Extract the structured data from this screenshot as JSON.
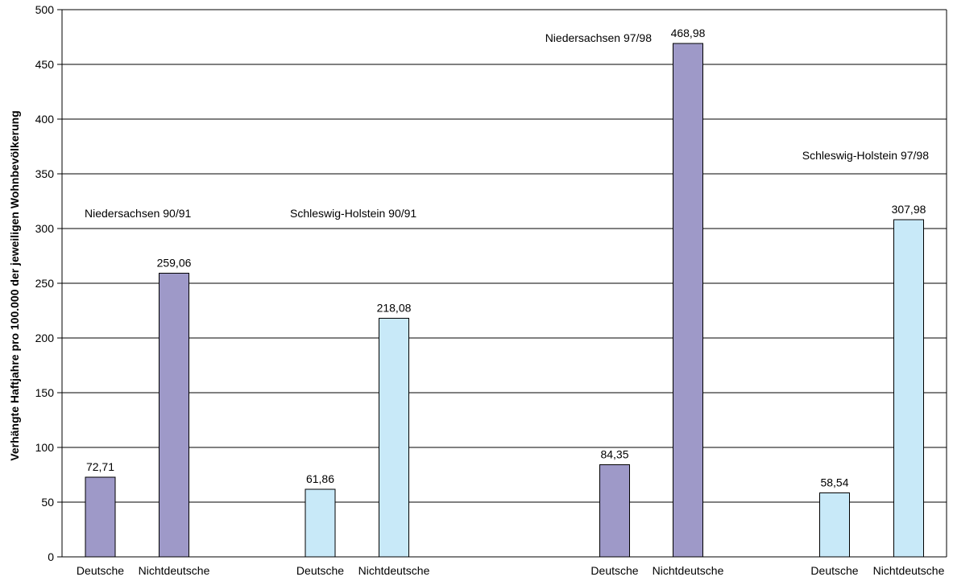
{
  "chart_data": {
    "type": "bar",
    "title": "",
    "xlabel": "",
    "ylabel": "Verhängte Haftjahre pro 100.000 der jeweiligen Wohnbevölkerung",
    "ylim": [
      0,
      500
    ],
    "yticks": [
      "0",
      "50",
      "100",
      "150",
      "200",
      "250",
      "300",
      "350",
      "400",
      "450",
      "500"
    ],
    "grid": true,
    "legend": "none",
    "colors": {
      "niedersachsen": "#9E99C8",
      "schleswig_holstein": "#C8E9F8",
      "bar_outline": "#000000",
      "gridline": "#000000"
    },
    "groups": [
      {
        "label": "Niedersachsen 90/91",
        "color": "niedersachsen",
        "bars": [
          {
            "category": "Deutsche",
            "value": 72.71,
            "value_label": "72,71"
          },
          {
            "category": "Nichtdeutsche",
            "value": 259.06,
            "value_label": "259,06"
          }
        ]
      },
      {
        "label": "Schleswig-Holstein 90/91",
        "color": "schleswig_holstein",
        "bars": [
          {
            "category": "Deutsche",
            "value": 61.86,
            "value_label": "61,86"
          },
          {
            "category": "Nichtdeutsche",
            "value": 218.08,
            "value_label": "218,08"
          }
        ]
      },
      {
        "label": "Niedersachsen 97/98",
        "color": "niedersachsen",
        "bars": [
          {
            "category": "Deutsche",
            "value": 84.35,
            "value_label": "84,35"
          },
          {
            "category": "Nichtdeutsche",
            "value": 468.98,
            "value_label": "468,98"
          }
        ]
      },
      {
        "label": "Schleswig-Holstein 97/98",
        "color": "schleswig_holstein",
        "bars": [
          {
            "category": "Deutsche",
            "value": 58.54,
            "value_label": "58,54"
          },
          {
            "category": "Nichtdeutsche",
            "value": 307.98,
            "value_label": "307,98"
          }
        ]
      }
    ]
  }
}
